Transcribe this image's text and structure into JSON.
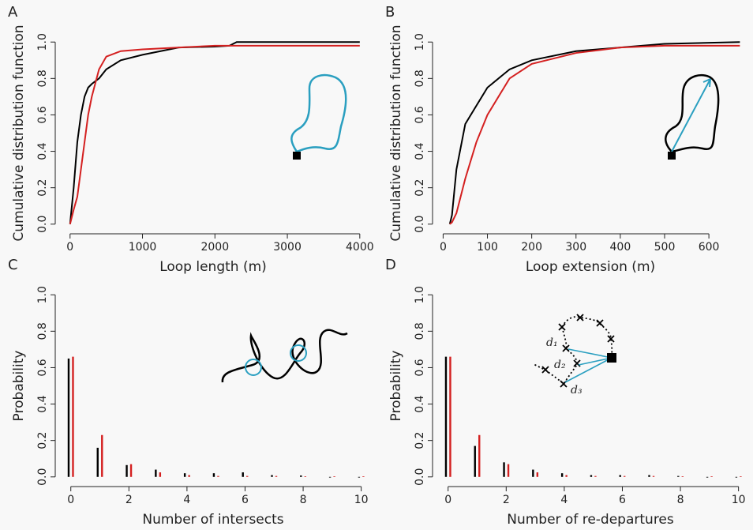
{
  "chart_data": [
    {
      "panel_label": "A",
      "type": "line",
      "xlabel": "Loop length (m)",
      "ylabel": "Cumulative distribution function",
      "x": [
        0,
        50,
        100,
        150,
        200,
        250,
        300,
        400,
        500,
        700,
        1000,
        1500,
        2000,
        2200,
        2300,
        3000,
        4000
      ],
      "series": [
        {
          "color": "#000000",
          "values": [
            0,
            0.2,
            0.45,
            0.6,
            0.7,
            0.75,
            0.77,
            0.8,
            0.85,
            0.9,
            0.93,
            0.97,
            0.975,
            0.98,
            1.0,
            1.0,
            1.0
          ]
        },
        {
          "color": "#d42020",
          "values": [
            0,
            0.08,
            0.15,
            0.3,
            0.45,
            0.6,
            0.7,
            0.85,
            0.92,
            0.95,
            0.96,
            0.97,
            0.98,
            0.98,
            0.98,
            0.98,
            0.98
          ]
        }
      ],
      "xlim": [
        -150,
        4100
      ],
      "ylim": [
        -0.04,
        1.04
      ],
      "xticks": [
        0,
        1000,
        2000,
        3000,
        4000
      ],
      "yticks": [
        {
          "value": 0,
          "label": "0.0"
        },
        {
          "value": 0.2,
          "label": "0.2"
        },
        {
          "value": 0.4,
          "label": "0.4"
        },
        {
          "value": 0.6,
          "label": "0.6"
        },
        {
          "value": 0.8,
          "label": "0.8"
        },
        {
          "value": 1,
          "label": "1.0"
        }
      ],
      "grid": false
    },
    {
      "panel_label": "B",
      "type": "line",
      "xlabel": "Loop extension (m)",
      "ylabel": "Cumulative distribution function",
      "x": [
        15,
        20,
        30,
        50,
        75,
        100,
        150,
        200,
        300,
        400,
        500,
        670
      ],
      "series": [
        {
          "color": "#000000",
          "values": [
            0,
            0.05,
            0.3,
            0.55,
            0.65,
            0.75,
            0.85,
            0.9,
            0.95,
            0.97,
            0.99,
            1.0
          ]
        },
        {
          "color": "#d42020",
          "values": [
            0,
            0.01,
            0.06,
            0.25,
            0.45,
            0.6,
            0.8,
            0.88,
            0.94,
            0.97,
            0.98,
            0.98
          ]
        }
      ],
      "xlim": [
        -15,
        680
      ],
      "ylim": [
        -0.04,
        1.04
      ],
      "xticks": [
        0,
        100,
        200,
        300,
        400,
        500,
        600
      ],
      "yticks": [
        {
          "value": 0,
          "label": "0.0"
        },
        {
          "value": 0.2,
          "label": "0.2"
        },
        {
          "value": 0.4,
          "label": "0.4"
        },
        {
          "value": 0.6,
          "label": "0.6"
        },
        {
          "value": 0.8,
          "label": "0.8"
        },
        {
          "value": 1,
          "label": "1.0"
        }
      ],
      "grid": false
    },
    {
      "panel_label": "C",
      "type": "bar",
      "xlabel": "Number of intersects",
      "ylabel": "Probability",
      "x": [
        0,
        1,
        2,
        3,
        4,
        5,
        6,
        7,
        8,
        9,
        10
      ],
      "series": [
        {
          "color": "#000000",
          "values": [
            0.65,
            0.16,
            0.065,
            0.04,
            0.02,
            0.02,
            0.025,
            0.01,
            0.008,
            0,
            0
          ]
        },
        {
          "color": "#d42020",
          "values": [
            0.66,
            0.23,
            0.07,
            0.025,
            0.01,
            0.005,
            0.005,
            0.005,
            0.003,
            0.003,
            0.003
          ]
        }
      ],
      "xlim": [
        -0.4,
        10.2
      ],
      "ylim": [
        -0.04,
        1.04
      ],
      "xticks": [
        0,
        2,
        4,
        6,
        8,
        10
      ],
      "yticks": [
        {
          "value": 0,
          "label": "0.0"
        },
        {
          "value": 0.2,
          "label": "0.2"
        },
        {
          "value": 0.4,
          "label": "0.4"
        },
        {
          "value": 0.6,
          "label": "0.6"
        },
        {
          "value": 0.8,
          "label": "0.8"
        },
        {
          "value": 1,
          "label": "1.0"
        }
      ],
      "grid": false
    },
    {
      "panel_label": "D",
      "type": "bar",
      "xlabel": "Number of re-departures",
      "ylabel": "Probability",
      "x": [
        0,
        1,
        2,
        3,
        4,
        5,
        6,
        7,
        8,
        9,
        10
      ],
      "series": [
        {
          "color": "#000000",
          "values": [
            0.66,
            0.17,
            0.08,
            0.04,
            0.02,
            0.01,
            0.01,
            0.01,
            0.005,
            0,
            0
          ]
        },
        {
          "color": "#d42020",
          "values": [
            0.66,
            0.23,
            0.07,
            0.025,
            0.01,
            0.005,
            0.005,
            0.005,
            0.003,
            0.003,
            0.003
          ]
        }
      ],
      "xlim": [
        -0.4,
        10.2
      ],
      "ylim": [
        -0.04,
        1.04
      ],
      "xticks": [
        0,
        2,
        4,
        6,
        8,
        10
      ],
      "yticks": [
        {
          "value": 0,
          "label": "0.0"
        },
        {
          "value": 0.2,
          "label": "0.2"
        },
        {
          "value": 0.4,
          "label": "0.4"
        },
        {
          "value": 0.6,
          "label": "0.6"
        },
        {
          "value": 0.8,
          "label": "0.8"
        },
        {
          "value": 1,
          "label": "1.0"
        }
      ],
      "grid": false,
      "annotations": [
        "d₁",
        "d₂",
        "d₃"
      ]
    }
  ]
}
